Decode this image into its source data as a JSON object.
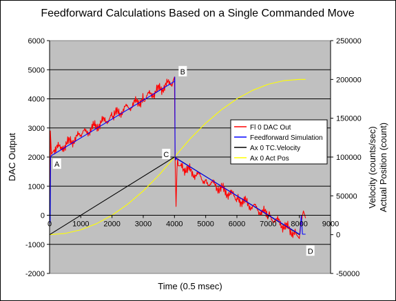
{
  "chart_data": {
    "type": "line",
    "title": "Feedforward Calculations Based on a Single Commanded Move",
    "xlabel": "Time (0.5 msec)",
    "ylabel": "DAC Output",
    "y2label": "Velocity  (counts/sec)\nActual Position (count)",
    "xlim": [
      0,
      9000
    ],
    "ylim": [
      -2000,
      6000
    ],
    "y2lim": [
      -50000,
      250000
    ],
    "x_ticks": [
      0,
      1000,
      2000,
      3000,
      4000,
      5000,
      6000,
      7000,
      8000,
      9000
    ],
    "y_ticks": [
      -2000,
      -1000,
      0,
      1000,
      2000,
      3000,
      4000,
      5000,
      6000
    ],
    "y2_ticks": [
      -50000,
      0,
      50000,
      100000,
      150000,
      200000,
      250000
    ],
    "grid": "horizontal",
    "legend_position": "right",
    "plot_background": "#c0c0c0",
    "series": [
      {
        "name": "Fl 0 DAC Out",
        "color": "#ff0000",
        "axis": "left",
        "noisy": true,
        "x": [
          0,
          20,
          25,
          60,
          150,
          400,
          1000,
          2000,
          3000,
          3950,
          4000,
          4020,
          4050,
          4080,
          4100,
          4120,
          4200,
          5000,
          6000,
          7000,
          7900,
          8000,
          8020,
          8100,
          8130,
          8200
        ],
        "y": [
          0,
          0,
          2900,
          2100,
          2250,
          2350,
          2750,
          3400,
          4000,
          4600,
          4750,
          2000,
          300,
          1600,
          1950,
          1700,
          1700,
          1200,
          600,
          0,
          -650,
          -800,
          -500,
          0,
          150,
          -100
        ]
      },
      {
        "name": "Feedforward Simulation",
        "color": "#0000ff",
        "axis": "left",
        "x": [
          0,
          20,
          30,
          60,
          4000,
          4010,
          4020,
          4040,
          4060,
          8000,
          8010,
          8020,
          8060,
          8100,
          8200
        ],
        "y": [
          -300,
          -200,
          2000,
          2050,
          4600,
          4750,
          2000,
          1900,
          1950,
          -650,
          -650,
          -650,
          0,
          -650,
          -650
        ]
      },
      {
        "name": "Ax 0 TC.Velocity",
        "color": "#000000",
        "axis": "right",
        "x": [
          0,
          4000,
          8000
        ],
        "y": [
          0,
          100000,
          0
        ]
      },
      {
        "name": "Ax 0 Act Pos",
        "color": "#ffff00",
        "axis": "right",
        "x": [
          0,
          500,
          1000,
          1500,
          2000,
          2500,
          3000,
          3500,
          4000,
          4500,
          5000,
          5500,
          6000,
          6500,
          7000,
          7500,
          8000,
          8200
        ],
        "y": [
          0,
          1600,
          6300,
          14100,
          25000,
          39100,
          56300,
          76600,
          100000,
          123400,
          143700,
          160900,
          175000,
          185900,
          193700,
          198400,
          200000,
          200000
        ]
      }
    ],
    "annotations": [
      {
        "label": "A",
        "x": 60,
        "y": 1950,
        "axis": "left"
      },
      {
        "label": "B",
        "x": 4000,
        "y": 4750,
        "axis": "left"
      },
      {
        "label": "C",
        "x": 4000,
        "y": 100000,
        "axis": "right"
      },
      {
        "label": "D",
        "x": 8000,
        "y": -800,
        "axis": "left"
      }
    ]
  }
}
